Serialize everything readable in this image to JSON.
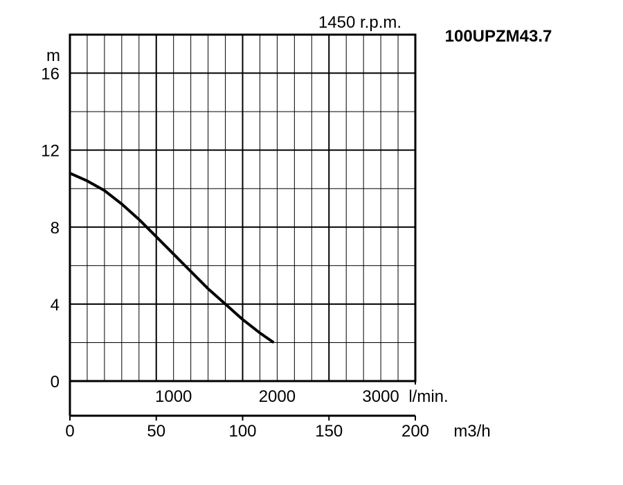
{
  "chart_data": {
    "type": "line",
    "title": "100UPZM43.7",
    "subtitle": "1450 r.p.m.",
    "ylabel": "m",
    "xlabel_flow_lmin": "l/min.",
    "xlabel_flow_m3h": "m3/h",
    "ylim": [
      0,
      18
    ],
    "xlim": [
      0,
      200
    ],
    "y_ticks": [
      "0",
      "4",
      "8",
      "12",
      "16"
    ],
    "lmin_ticks": [
      "1000",
      "2000",
      "3000"
    ],
    "m3h_ticks": [
      "0",
      "50",
      "100",
      "150",
      "200"
    ],
    "grid": true,
    "colors": {
      "line": "#000000",
      "grid": "#000000"
    },
    "series": [
      {
        "x": [
          0,
          10,
          20,
          30,
          40,
          50,
          60,
          70,
          80,
          90,
          100,
          110,
          118
        ],
        "y": [
          10.8,
          10.4,
          9.9,
          9.2,
          8.4,
          7.5,
          6.6,
          5.7,
          4.8,
          4.0,
          3.2,
          2.5,
          2.0
        ]
      }
    ]
  }
}
